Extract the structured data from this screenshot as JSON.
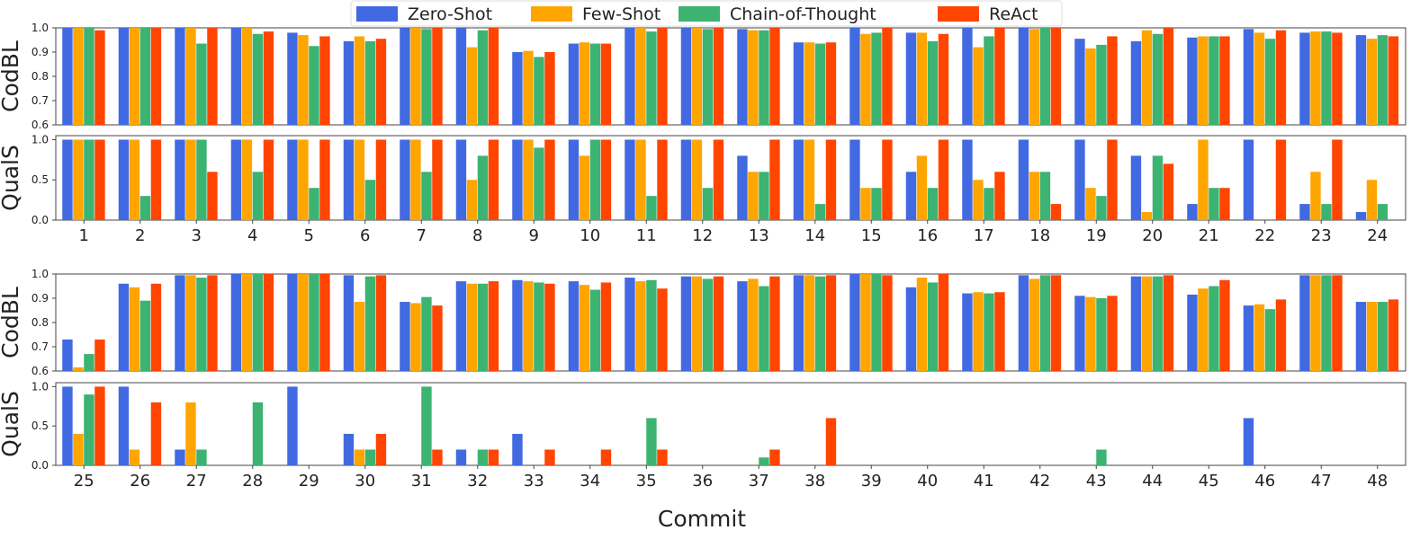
{
  "chart_data": {
    "type": "bar",
    "xlabel": "Commit",
    "legend": {
      "placement": "top-center",
      "entries": [
        "Zero-Shot",
        "Few-Shot",
        "Chain-of-Thought",
        "ReAct"
      ]
    },
    "colors": {
      "Zero-Shot": "#4169e1",
      "Few-Shot": "#ffa500",
      "Chain-of-Thought": "#3cb371",
      "ReAct": "#ff4500"
    },
    "panels": [
      {
        "id": "top-codbl",
        "ylabel": "CodBL",
        "ylim": [
          0.6,
          1.0
        ],
        "yticks": [
          "0.6",
          "0.7",
          "0.8",
          "0.9",
          "1.0"
        ],
        "categories": [
          "1",
          "2",
          "3",
          "4",
          "5",
          "6",
          "7",
          "8",
          "9",
          "10",
          "11",
          "12",
          "13",
          "14",
          "15",
          "16",
          "17",
          "18",
          "19",
          "20",
          "21",
          "22",
          "23",
          "24"
        ],
        "series": [
          {
            "name": "Zero-Shot",
            "values": [
              1.0,
              1.0,
              1.0,
              1.0,
              0.98,
              0.945,
              1.0,
              1.0,
              0.9,
              0.935,
              1.0,
              1.0,
              0.995,
              0.94,
              1.0,
              0.98,
              1.0,
              1.0,
              0.955,
              0.945,
              0.96,
              0.995,
              0.98,
              0.97
            ]
          },
          {
            "name": "Few-Shot",
            "values": [
              1.0,
              1.0,
              1.0,
              1.0,
              0.97,
              0.965,
              1.0,
              0.92,
              0.905,
              0.94,
              1.0,
              1.0,
              0.99,
              0.94,
              0.975,
              0.98,
              0.92,
              0.995,
              0.915,
              0.99,
              0.965,
              0.98,
              0.985,
              0.955
            ]
          },
          {
            "name": "Chain-of-Thought",
            "values": [
              1.0,
              1.0,
              0.935,
              0.975,
              0.925,
              0.945,
              0.995,
              0.99,
              0.88,
              0.935,
              0.985,
              0.995,
              0.99,
              0.935,
              0.98,
              0.945,
              0.965,
              1.0,
              0.93,
              0.975,
              0.965,
              0.955,
              0.985,
              0.97
            ]
          },
          {
            "name": "ReAct",
            "values": [
              0.99,
              1.0,
              1.0,
              0.985,
              0.965,
              0.955,
              1.0,
              1.0,
              0.9,
              0.935,
              1.0,
              1.0,
              1.0,
              0.94,
              1.0,
              0.975,
              1.0,
              1.0,
              0.965,
              1.0,
              0.965,
              0.99,
              0.98,
              0.965
            ]
          }
        ]
      },
      {
        "id": "top-quals",
        "ylabel": "QualS",
        "ylim": [
          0.0,
          1.05
        ],
        "yticks": [
          "0.0",
          "0.5",
          "1.0"
        ],
        "categories": [
          "1",
          "2",
          "3",
          "4",
          "5",
          "6",
          "7",
          "8",
          "9",
          "10",
          "11",
          "12",
          "13",
          "14",
          "15",
          "16",
          "17",
          "18",
          "19",
          "20",
          "21",
          "22",
          "23",
          "24"
        ],
        "series": [
          {
            "name": "Zero-Shot",
            "values": [
              1.0,
              1.0,
              1.0,
              1.0,
              1.0,
              1.0,
              1.0,
              1.0,
              1.0,
              1.0,
              1.0,
              1.0,
              0.8,
              1.0,
              1.0,
              0.6,
              1.0,
              1.0,
              1.0,
              0.8,
              0.2,
              1.0,
              0.2,
              0.1
            ]
          },
          {
            "name": "Few-Shot",
            "values": [
              1.0,
              1.0,
              1.0,
              1.0,
              1.0,
              1.0,
              1.0,
              0.5,
              1.0,
              0.8,
              1.0,
              1.0,
              0.6,
              1.0,
              0.4,
              0.8,
              0.5,
              0.6,
              0.4,
              0.1,
              1.0,
              0.0,
              0.6,
              0.5
            ]
          },
          {
            "name": "Chain-of-Thought",
            "values": [
              1.0,
              0.3,
              1.0,
              0.6,
              0.4,
              0.5,
              0.6,
              0.8,
              0.9,
              1.0,
              0.3,
              0.4,
              0.6,
              0.2,
              0.4,
              0.4,
              0.4,
              0.6,
              0.3,
              0.8,
              0.4,
              0.0,
              0.2,
              0.2
            ]
          },
          {
            "name": "ReAct",
            "values": [
              1.0,
              1.0,
              0.6,
              1.0,
              1.0,
              1.0,
              1.0,
              1.0,
              1.0,
              1.0,
              1.0,
              1.0,
              1.0,
              1.0,
              1.0,
              1.0,
              0.6,
              0.2,
              1.0,
              0.7,
              0.4,
              1.0,
              1.0,
              0.0
            ]
          }
        ]
      },
      {
        "id": "bottom-codbl",
        "ylabel": "CodBL",
        "ylim": [
          0.6,
          1.0
        ],
        "yticks": [
          "0.6",
          "0.7",
          "0.8",
          "0.9",
          "1.0"
        ],
        "categories": [
          "25",
          "26",
          "27",
          "28",
          "29",
          "30",
          "31",
          "32",
          "33",
          "34",
          "35",
          "36",
          "37",
          "38",
          "39",
          "40",
          "41",
          "42",
          "43",
          "44",
          "45",
          "46",
          "47",
          "48"
        ],
        "series": [
          {
            "name": "Zero-Shot",
            "values": [
              0.73,
              0.96,
              0.995,
              1.0,
              1.0,
              0.995,
              0.885,
              0.97,
              0.975,
              0.97,
              0.985,
              0.99,
              0.97,
              0.995,
              1.0,
              0.945,
              0.92,
              0.995,
              0.91,
              0.99,
              0.915,
              0.87,
              0.995,
              0.885
            ]
          },
          {
            "name": "Few-Shot",
            "values": [
              0.615,
              0.945,
              0.995,
              1.0,
              1.0,
              0.885,
              0.88,
              0.96,
              0.97,
              0.955,
              0.97,
              0.99,
              0.98,
              0.995,
              1.0,
              0.985,
              0.925,
              0.98,
              0.905,
              0.99,
              0.94,
              0.875,
              0.995,
              0.885
            ]
          },
          {
            "name": "Chain-of-Thought",
            "values": [
              0.67,
              0.89,
              0.985,
              1.0,
              1.0,
              0.99,
              0.905,
              0.96,
              0.965,
              0.935,
              0.975,
              0.98,
              0.95,
              0.99,
              1.0,
              0.965,
              0.92,
              0.995,
              0.9,
              0.99,
              0.95,
              0.855,
              0.995,
              0.885
            ]
          },
          {
            "name": "ReAct",
            "values": [
              0.73,
              0.96,
              0.995,
              1.0,
              1.0,
              0.995,
              0.87,
              0.97,
              0.96,
              0.965,
              0.94,
              0.99,
              0.99,
              0.995,
              0.995,
              1.0,
              0.925,
              0.995,
              0.91,
              0.995,
              0.975,
              0.895,
              0.995,
              0.895
            ]
          }
        ]
      },
      {
        "id": "bottom-quals",
        "ylabel": "QualS",
        "ylim": [
          0.0,
          1.05
        ],
        "yticks": [
          "0.0",
          "0.5",
          "1.0"
        ],
        "categories": [
          "25",
          "26",
          "27",
          "28",
          "29",
          "30",
          "31",
          "32",
          "33",
          "34",
          "35",
          "36",
          "37",
          "38",
          "39",
          "40",
          "41",
          "42",
          "43",
          "44",
          "45",
          "46",
          "47",
          "48"
        ],
        "series": [
          {
            "name": "Zero-Shot",
            "values": [
              1.0,
              1.0,
              0.2,
              0.0,
              1.0,
              0.4,
              0.0,
              0.2,
              0.4,
              0.0,
              0.0,
              0.0,
              0.0,
              0.0,
              0.0,
              0.0,
              0.0,
              0.0,
              0.0,
              0.0,
              0.0,
              0.6,
              0.0,
              0.0
            ]
          },
          {
            "name": "Few-Shot",
            "values": [
              0.4,
              0.2,
              0.8,
              0.0,
              0.0,
              0.2,
              0.0,
              0.0,
              0.0,
              0.0,
              0.0,
              0.0,
              0.0,
              0.0,
              0.0,
              0.0,
              0.0,
              0.0,
              0.0,
              0.0,
              0.0,
              0.0,
              0.0,
              0.0
            ]
          },
          {
            "name": "Chain-of-Thought",
            "values": [
              0.9,
              0.0,
              0.2,
              0.8,
              0.0,
              0.2,
              1.0,
              0.2,
              0.0,
              0.0,
              0.6,
              0.0,
              0.1,
              0.0,
              0.0,
              0.0,
              0.0,
              0.0,
              0.2,
              0.0,
              0.0,
              0.0,
              0.0,
              0.0
            ]
          },
          {
            "name": "ReAct",
            "values": [
              1.0,
              0.8,
              0.0,
              0.0,
              0.0,
              0.4,
              0.2,
              0.2,
              0.2,
              0.2,
              0.2,
              0.0,
              0.2,
              0.6,
              0.0,
              0.0,
              0.0,
              0.0,
              0.0,
              0.0,
              0.0,
              0.0,
              0.0,
              0.0
            ]
          }
        ]
      }
    ]
  }
}
